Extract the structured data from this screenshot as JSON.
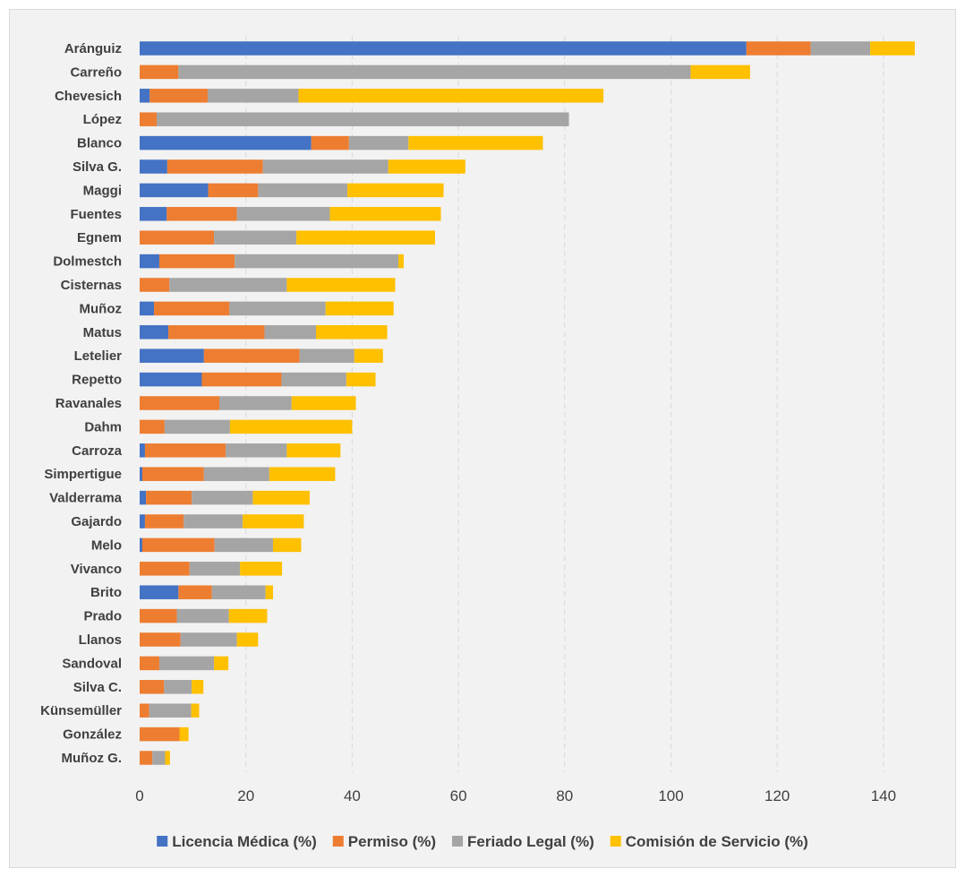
{
  "chart_data": {
    "type": "bar",
    "orientation": "horizontal",
    "stacked": true,
    "categories": [
      "Aránguiz",
      "Carreño",
      "Chevesich",
      "López",
      "Blanco",
      "Silva G.",
      "Maggi",
      "Fuentes",
      "Egnem",
      "Dolmestch",
      "Cisternas",
      "Muñoz",
      "Matus",
      "Letelier",
      "Repetto",
      "Ravanales",
      "Dahm",
      "Carroza",
      "Simpertigue",
      "Valderrama",
      "Gajardo",
      "Melo",
      "Vivanco",
      "Brito",
      "Prado",
      "Llanos",
      "Sandoval",
      "Silva C.",
      "Künsemüller",
      "González",
      "Muñoz G."
    ],
    "series": [
      {
        "name": "Licencia Médica (%)",
        "color": "#4472c4",
        "values": [
          114.2,
          0,
          1.9,
          0,
          32.3,
          5.2,
          12.9,
          5.1,
          0,
          3.7,
          0,
          2.7,
          5.4,
          12.1,
          11.7,
          0,
          0,
          1.0,
          0.5,
          1.2,
          1.0,
          0.5,
          0,
          7.3,
          0,
          0,
          0,
          0,
          0,
          0,
          0
        ]
      },
      {
        "name": "Permiso (%)",
        "color": "#ed7d31",
        "values": [
          12.1,
          7.3,
          10.9,
          3.2,
          7.1,
          18.0,
          9.4,
          13.2,
          14.0,
          14.2,
          5.6,
          14.2,
          18.1,
          18.0,
          15.0,
          15.0,
          4.7,
          15.2,
          11.6,
          8.6,
          7.3,
          13.6,
          9.4,
          6.3,
          7.0,
          7.7,
          3.7,
          4.6,
          1.8,
          7.5,
          2.4
        ]
      },
      {
        "name": "Feriado Legal (%)",
        "color": "#a5a5a5",
        "values": [
          11.2,
          96.4,
          17.1,
          77.6,
          11.2,
          23.6,
          16.8,
          17.5,
          15.5,
          30.8,
          22.1,
          18.1,
          9.7,
          10.3,
          12.2,
          13.6,
          12.3,
          11.5,
          12.3,
          11.5,
          11.1,
          11.0,
          9.5,
          10.1,
          9.8,
          10.6,
          10.3,
          5.2,
          7.9,
          0,
          2.4
        ]
      },
      {
        "name": "Comisión de Servicio (%)",
        "color": "#ffc000",
        "values": [
          8.4,
          11.2,
          57.4,
          0,
          25.3,
          14.5,
          18.1,
          20.9,
          26.1,
          1.0,
          20.4,
          12.8,
          13.4,
          5.4,
          5.5,
          12.1,
          23.0,
          10.1,
          12.4,
          10.7,
          11.5,
          5.3,
          7.9,
          1.4,
          7.2,
          4.0,
          2.7,
          2.2,
          1.5,
          1.7,
          0.9
        ]
      }
    ],
    "xlim": [
      0,
      150
    ],
    "xticks": [
      0,
      20,
      40,
      60,
      80,
      100,
      120,
      140
    ],
    "grid": "vertical",
    "legend_position": "bottom"
  }
}
